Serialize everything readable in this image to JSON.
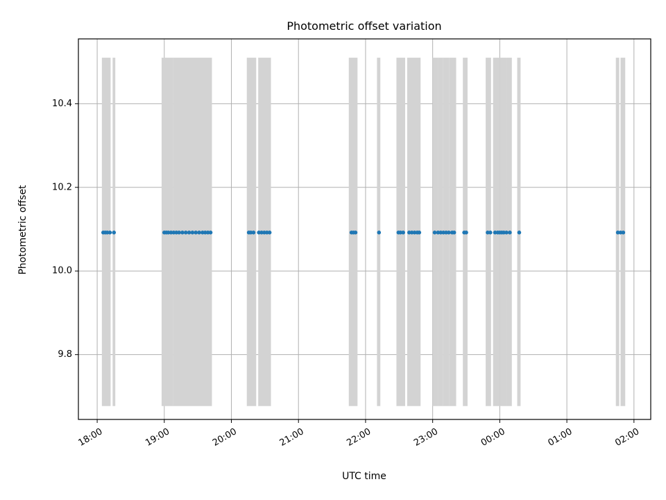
{
  "chart_data": {
    "type": "scatter",
    "title": "Photometric offset variation",
    "xlabel": "UTC time",
    "ylabel": "Photometric offset",
    "x_tick_labels": [
      "18:00",
      "19:00",
      "20:00",
      "21:00",
      "22:00",
      "23:00",
      "00:00",
      "01:00",
      "02:00"
    ],
    "x_ticks_hours": [
      0,
      1,
      2,
      3,
      4,
      5,
      6,
      7,
      8
    ],
    "x_origin": "18:00",
    "xlim_hours": [
      -0.28,
      8.25
    ],
    "y_tick_labels": [
      "9.8",
      "10.0",
      "10.2",
      "10.4"
    ],
    "y_ticks": [
      9.8,
      10.0,
      10.2,
      10.4
    ],
    "ylim": [
      9.645,
      10.555
    ],
    "grid": true,
    "span_ymin": 9.677,
    "span_ymax": 10.51,
    "colors": {
      "points": "#1f77b4",
      "spans": "#d3d3d3",
      "grid": "#b0b0b0"
    },
    "shaded_intervals_hours": [
      [
        0.07,
        0.2
      ],
      [
        0.23,
        0.27
      ],
      [
        0.96,
        1.13
      ],
      [
        1.13,
        1.71
      ],
      [
        2.23,
        2.37
      ],
      [
        2.4,
        2.59
      ],
      [
        3.75,
        3.88
      ],
      [
        4.17,
        4.22
      ],
      [
        4.46,
        4.59
      ],
      [
        4.62,
        4.82
      ],
      [
        5.0,
        5.08
      ],
      [
        5.08,
        5.15
      ],
      [
        5.15,
        5.25
      ],
      [
        5.25,
        5.35
      ],
      [
        5.45,
        5.52
      ],
      [
        5.79,
        5.87
      ],
      [
        5.9,
        6.0
      ],
      [
        6.0,
        6.1
      ],
      [
        6.1,
        6.18
      ],
      [
        6.26,
        6.31
      ],
      [
        7.73,
        7.78
      ],
      [
        7.8,
        7.87
      ]
    ],
    "series": [
      {
        "value": 10.092,
        "x_hours": [
          0.09,
          0.12,
          0.15,
          0.19,
          0.25,
          1.0,
          1.03,
          1.06,
          1.1,
          1.14,
          1.18,
          1.22,
          1.27,
          1.32,
          1.37,
          1.42,
          1.47,
          1.52,
          1.57,
          1.61,
          1.65,
          1.69,
          2.26,
          2.29,
          2.33,
          2.41,
          2.45,
          2.49,
          2.53,
          2.57,
          3.79,
          3.82,
          3.85,
          4.2,
          4.49,
          4.52,
          4.56,
          4.65,
          4.69,
          4.73,
          4.77,
          4.8,
          5.03,
          5.08,
          5.12,
          5.16,
          5.2,
          5.24,
          5.29,
          5.32,
          5.47,
          5.5,
          5.82,
          5.86,
          5.93,
          5.97,
          6.0,
          6.03,
          6.06,
          6.1,
          6.15,
          6.29,
          7.76,
          7.8,
          7.84
        ]
      }
    ]
  }
}
